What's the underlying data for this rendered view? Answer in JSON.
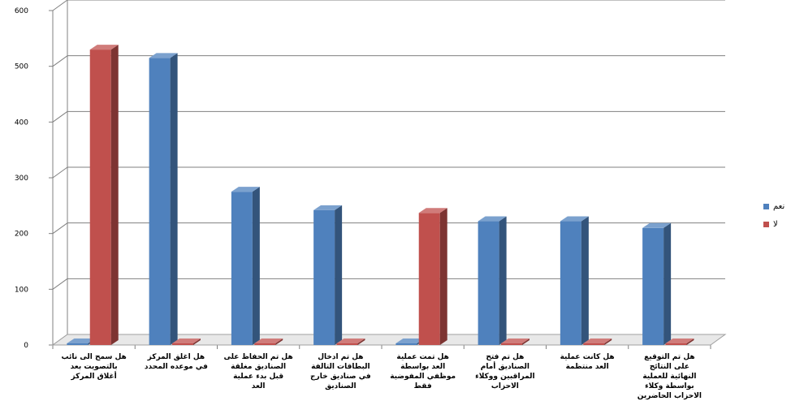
{
  "chart_data": {
    "type": "bar",
    "title": "",
    "xlabel": "",
    "ylabel": "",
    "ylim": [
      0,
      600
    ],
    "yticks": [
      0,
      100,
      200,
      300,
      400,
      500,
      600
    ],
    "grid": true,
    "legend_position": "right",
    "categories": [
      "هل سمح الى نائب بالتصويت بعد أغلاق المركز",
      "هل اغلق المركز في موعده المحدد",
      "هل تم الحفاظ على الصناديق مغلقة قبل بدء عملية العد",
      "هل تم ادخال البطاقات التالفة في صناديق خارج الصناديق",
      "هل تمت عملية العد بواسطة موظفي المفوضية فقط",
      "هل تم فتح الصناديق أمام المراقبين ووكلاء الاحزاب",
      "هل كانت عملية العد منتظمة",
      "هل تم التوقيع على النتائج النهائية للعملية بواسطة وكلاء الاحزاب الحاضرين"
    ],
    "series": [
      {
        "name": "نعم",
        "color": "#4F81BD",
        "values": [
          0,
          515,
          275,
          242,
          0,
          222,
          222,
          210
        ]
      },
      {
        "name": "لا",
        "color": "#C0504D",
        "values": [
          530,
          0,
          0,
          0,
          237,
          0,
          0,
          0
        ]
      }
    ]
  }
}
